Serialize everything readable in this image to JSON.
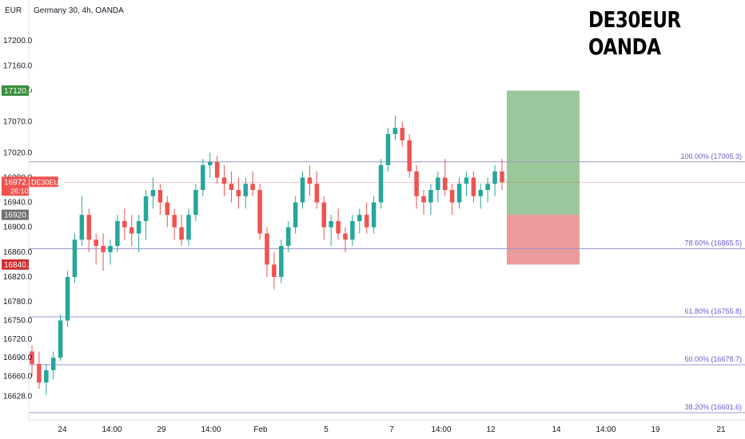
{
  "header": {
    "currency": "EUR",
    "series_info": "Germany 30, 4h, OANDA",
    "symbol_line1": "DE30EUR",
    "symbol_line2": "OANDA"
  },
  "colors": {
    "up": "#26a69a",
    "down": "#ef5350",
    "fib_line": "#9b93cf",
    "fib_text": "#6a5acd",
    "target_zone": "#9bc89a",
    "stop_zone": "#ec9a9a",
    "target_badge": "#388e3c",
    "stop_badge": "#d32f2f",
    "entry_badge": "#707070"
  },
  "price_badges": {
    "target": "17120.0",
    "current": "16972.5",
    "countdown": "26:10",
    "symbol_tag": "DE30EUR",
    "entry": "16920.0",
    "stop": "16840.0"
  },
  "chart_data": {
    "type": "candlestick",
    "title": "Germany 30, 4h, OANDA",
    "xlabel": "",
    "ylabel": "",
    "ylim": [
      16590,
      17235
    ],
    "grid": false,
    "y_ticks": [
      "17200.0",
      "17160.0",
      "17120.0",
      "17070.0",
      "17020.0",
      "16980.0",
      "16940.0",
      "16900.0",
      "16860.0",
      "16820.0",
      "16780.0",
      "16750.0",
      "16720.0",
      "16690.0",
      "16660.0",
      "16628.0"
    ],
    "x_ticks": [
      "24",
      "14:00",
      "29",
      "14:00",
      "Feb",
      "5",
      "7",
      "14:00",
      "12",
      "14",
      "14:00",
      "19",
      "21"
    ],
    "fib_levels": [
      {
        "label": "100.00% (17005.3)",
        "value": 17005.3
      },
      {
        "label": "78.60% (16865.5)",
        "value": 16865.5
      },
      {
        "label": "61.80% (16755.8)",
        "value": 16755.8
      },
      {
        "label": "50.00% (16678.7)",
        "value": 16678.7
      },
      {
        "label": "38.20% (16601.6)",
        "value": 16601.6
      }
    ],
    "position": {
      "entry": 16920.0,
      "target": 17120.0,
      "stop": 16840.0
    },
    "candles": [
      [
        16700,
        16710,
        16660,
        16680
      ],
      [
        16680,
        16700,
        16640,
        16650
      ],
      [
        16650,
        16680,
        16630,
        16670
      ],
      [
        16670,
        16700,
        16655,
        16690
      ],
      [
        16690,
        16760,
        16685,
        16750
      ],
      [
        16750,
        16830,
        16740,
        16820
      ],
      [
        16820,
        16890,
        16810,
        16880
      ],
      [
        16880,
        16950,
        16870,
        16920
      ],
      [
        16920,
        16930,
        16860,
        16880
      ],
      [
        16880,
        16890,
        16840,
        16870
      ],
      [
        16870,
        16890,
        16830,
        16860
      ],
      [
        16860,
        16880,
        16840,
        16870
      ],
      [
        16870,
        16920,
        16860,
        16910
      ],
      [
        16910,
        16930,
        16880,
        16900
      ],
      [
        16900,
        16920,
        16870,
        16890
      ],
      [
        16890,
        16920,
        16860,
        16910
      ],
      [
        16910,
        16960,
        16880,
        16950
      ],
      [
        16950,
        16980,
        16930,
        16960
      ],
      [
        16960,
        16970,
        16920,
        16940
      ],
      [
        16940,
        16950,
        16900,
        16920
      ],
      [
        16920,
        16930,
        16880,
        16900
      ],
      [
        16900,
        16920,
        16870,
        16880
      ],
      [
        16880,
        16930,
        16870,
        16920
      ],
      [
        16920,
        16970,
        16910,
        16960
      ],
      [
        16960,
        17010,
        16950,
        17000
      ],
      [
        17000,
        17020,
        16980,
        17005
      ],
      [
        17005,
        17015,
        16970,
        16980
      ],
      [
        16980,
        17000,
        16950,
        16970
      ],
      [
        16970,
        16990,
        16940,
        16960
      ],
      [
        16960,
        16980,
        16930,
        16950
      ],
      [
        16950,
        16980,
        16930,
        16970
      ],
      [
        16970,
        16990,
        16950,
        16960
      ],
      [
        16960,
        16970,
        16880,
        16890
      ],
      [
        16890,
        16900,
        16820,
        16840
      ],
      [
        16840,
        16860,
        16800,
        16820
      ],
      [
        16820,
        16880,
        16810,
        16870
      ],
      [
        16870,
        16910,
        16860,
        16900
      ],
      [
        16900,
        16950,
        16890,
        16940
      ],
      [
        16940,
        16990,
        16930,
        16980
      ],
      [
        16980,
        17000,
        16950,
        16970
      ],
      [
        16970,
        16990,
        16930,
        16940
      ],
      [
        16940,
        16950,
        16880,
        16900
      ],
      [
        16900,
        16920,
        16870,
        16910
      ],
      [
        16910,
        16930,
        16880,
        16890
      ],
      [
        16890,
        16900,
        16860,
        16880
      ],
      [
        16880,
        16920,
        16870,
        16910
      ],
      [
        16910,
        16930,
        16890,
        16920
      ],
      [
        16920,
        16940,
        16890,
        16900
      ],
      [
        16900,
        16950,
        16890,
        16940
      ],
      [
        16940,
        17010,
        16930,
        17000
      ],
      [
        17000,
        17060,
        16990,
        17050
      ],
      [
        17050,
        17080,
        17040,
        17060
      ],
      [
        17060,
        17070,
        17030,
        17040
      ],
      [
        17040,
        17050,
        16980,
        16990
      ],
      [
        16990,
        17000,
        16930,
        16950
      ],
      [
        16950,
        16960,
        16920,
        16940
      ],
      [
        16940,
        16970,
        16920,
        16960
      ],
      [
        16960,
        16990,
        16940,
        16980
      ],
      [
        16980,
        17010,
        16950,
        16960
      ],
      [
        16960,
        16970,
        16920,
        16940
      ],
      [
        16940,
        16980,
        16930,
        16970
      ],
      [
        16970,
        16990,
        16950,
        16980
      ],
      [
        16980,
        16990,
        16940,
        16950
      ],
      [
        16950,
        16970,
        16930,
        16960
      ],
      [
        16960,
        16980,
        16940,
        16970
      ],
      [
        16970,
        17000,
        16950,
        16990
      ],
      [
        16990,
        17010,
        16960,
        16972.5
      ]
    ]
  }
}
